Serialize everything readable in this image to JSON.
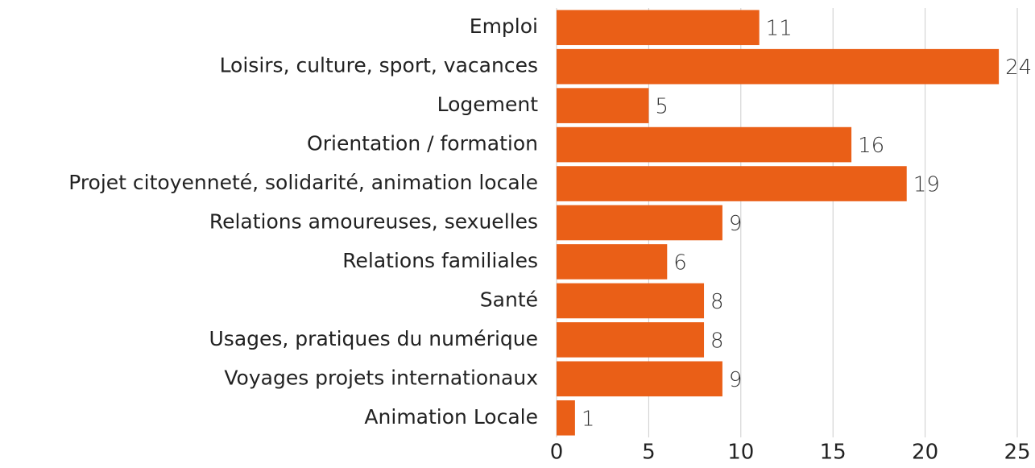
{
  "chart_data": {
    "type": "bar",
    "orientation": "horizontal",
    "categories": [
      "Emploi",
      "Loisirs, culture, sport, vacances",
      "Logement",
      "Orientation / formation",
      "Projet citoyenneté, solidarité, animation locale",
      "Relations amoureuses, sexuelles",
      "Relations familiales",
      "Santé",
      "Usages, pratiques du numérique",
      "Voyages projets internationaux",
      "Animation Locale"
    ],
    "values": [
      11,
      24,
      5,
      16,
      19,
      9,
      6,
      8,
      8,
      9,
      1
    ],
    "color": "#ea5f17",
    "xlim": [
      0,
      25
    ],
    "xticks": [
      0,
      5,
      10,
      15,
      20,
      25
    ],
    "grid": true
  }
}
